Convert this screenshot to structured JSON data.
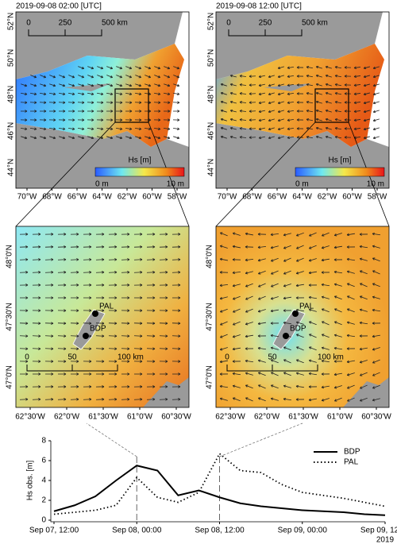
{
  "chart_data": {
    "type": "line",
    "y_label": "Hs obs. [m]",
    "x": [
      "2019-09-07T12:00",
      "2019-09-07T15:00",
      "2019-09-07T18:00",
      "2019-09-07T21:00",
      "2019-09-08T00:00",
      "2019-09-08T03:00",
      "2019-09-08T06:00",
      "2019-09-08T09:00",
      "2019-09-08T12:00",
      "2019-09-08T15:00",
      "2019-09-08T18:00",
      "2019-09-08T21:00",
      "2019-09-09T00:00",
      "2019-09-09T03:00",
      "2019-09-09T06:00",
      "2019-09-09T09:00",
      "2019-09-09T12:00"
    ],
    "series": [
      {
        "name": "BDP",
        "color": "#000000",
        "dash": "solid",
        "values": [
          0.9,
          1.5,
          2.4,
          4.0,
          5.5,
          5.0,
          2.5,
          3.0,
          2.3,
          1.7,
          1.4,
          1.2,
          1.0,
          0.9,
          0.8,
          0.6,
          0.5
        ]
      },
      {
        "name": "PAL",
        "color": "#000000",
        "dash": "dotted",
        "values": [
          0.6,
          0.8,
          1.0,
          1.5,
          4.3,
          2.3,
          1.8,
          2.8,
          6.7,
          5.0,
          4.8,
          3.6,
          2.8,
          2.5,
          2.2,
          1.8,
          1.4
        ]
      }
    ],
    "xlim": [
      "2019-09-07T12:00",
      "2019-09-09T12:00"
    ],
    "xticks": [
      {
        "value": "2019-09-07T12:00",
        "label": "Sep 07, 12:00"
      },
      {
        "value": "2019-09-08T00:00",
        "label": "Sep 08, 00:00"
      },
      {
        "value": "2019-09-08T12:00",
        "label": "Sep 08, 12:00"
      },
      {
        "value": "2019-09-09T00:00",
        "label": "Sep 09, 00:00"
      },
      {
        "value": "2019-09-09T12:00",
        "label": "Sep 09, 12:00"
      }
    ],
    "x_year_label": "2019",
    "ylim": [
      0,
      8
    ],
    "yticks": [
      0,
      2,
      4,
      6,
      8
    ],
    "legend": "upper right"
  },
  "maps": [
    {
      "title": "2019-09-08 02:00 [UTC]"
    },
    {
      "title": "2019-09-08 12:00 [UTC]"
    }
  ],
  "overview_axes": {
    "lat_labels": [
      "52°N",
      "50°N",
      "48°N",
      "46°N",
      "44°N"
    ],
    "lon_labels": [
      "70°W",
      "68°W",
      "66°W",
      "64°W",
      "62°W",
      "60°W",
      "58°W"
    ],
    "scale_bar": [
      "0",
      "250",
      "500 km"
    ]
  },
  "colorbar": {
    "label": "Hs [m]",
    "min_label": "0 m",
    "max_label": "10 m"
  },
  "zoom_axes": {
    "lat_labels": [
      "48°0'N",
      "47°30'N",
      "47°0'N"
    ],
    "lon_labels": [
      "62°30'W",
      "62°0'W",
      "61°30'W",
      "61°0'W",
      "60°30'W"
    ],
    "scale_bar": [
      "0",
      "50",
      "100 km"
    ]
  },
  "stations": [
    "PAL",
    "BDP"
  ]
}
